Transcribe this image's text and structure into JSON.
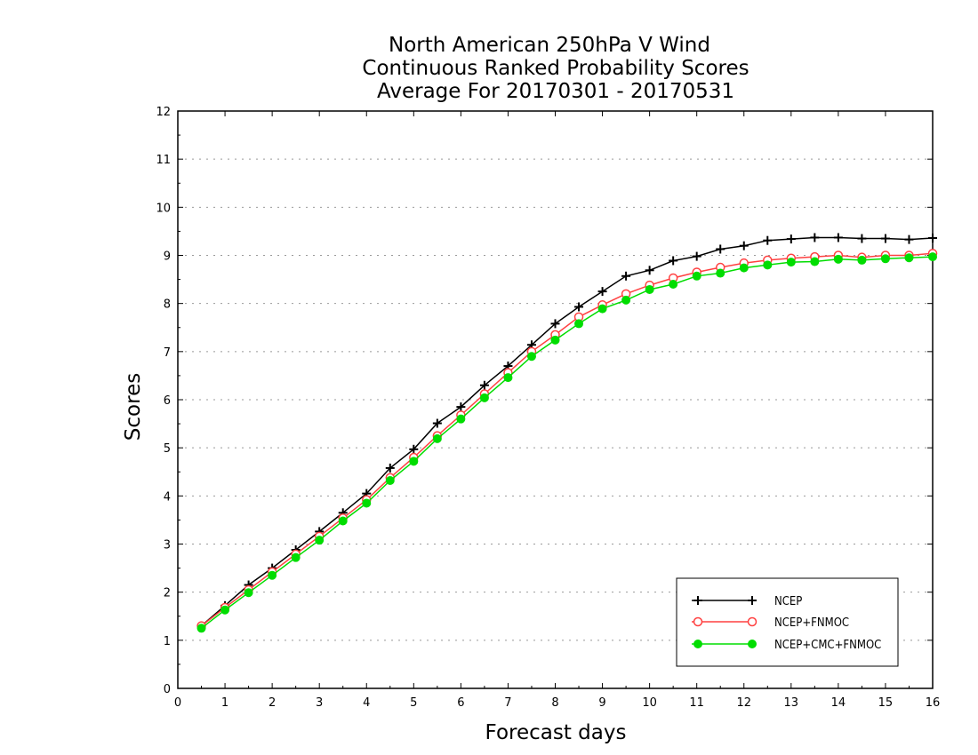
{
  "chart_data": {
    "type": "line",
    "title": [
      "North American 250hPa V Wind",
      "Continuous Ranked Probability Scores",
      "Average For 20170301 - 20170531"
    ],
    "xlabel": "Forecast days",
    "ylabel": "Scores",
    "xlim": [
      0,
      16
    ],
    "ylim": [
      0,
      12
    ],
    "xticks": [
      0,
      1,
      2,
      3,
      4,
      5,
      6,
      7,
      8,
      9,
      10,
      11,
      12,
      13,
      14,
      15,
      16
    ],
    "yticks": [
      0,
      1,
      2,
      3,
      4,
      5,
      6,
      7,
      8,
      9,
      10,
      11,
      12
    ],
    "grid": true,
    "legend_position": "bottom-right",
    "x": [
      0.5,
      1,
      1.5,
      2,
      2.5,
      3,
      3.5,
      4,
      4.5,
      5,
      5.5,
      6,
      6.5,
      7,
      7.5,
      8,
      8.5,
      9,
      9.5,
      10,
      10.5,
      11,
      11.5,
      12,
      12.5,
      13,
      13.5,
      14,
      14.5,
      15,
      15.5,
      16
    ],
    "series": [
      {
        "name": "NCEP",
        "color": "#000000",
        "marker": "plus",
        "values": [
          1.3,
          1.72,
          2.15,
          2.5,
          2.88,
          3.26,
          3.65,
          4.05,
          4.58,
          4.97,
          5.51,
          5.85,
          6.3,
          6.7,
          7.14,
          7.58,
          7.93,
          8.25,
          8.57,
          8.69,
          8.89,
          8.98,
          9.13,
          9.2,
          9.31,
          9.34,
          9.37,
          9.37,
          9.35,
          9.35,
          9.33,
          9.36
        ]
      },
      {
        "name": "NCEP+FNMOC",
        "color": "#ff4040",
        "marker": "open-circle",
        "values": [
          1.3,
          1.68,
          2.05,
          2.42,
          2.79,
          3.16,
          3.54,
          3.92,
          4.38,
          4.8,
          5.25,
          5.68,
          6.12,
          6.56,
          7.0,
          7.35,
          7.72,
          7.97,
          8.2,
          8.38,
          8.53,
          8.65,
          8.75,
          8.84,
          8.9,
          8.94,
          8.97,
          9.0,
          8.96,
          9.0,
          9.0,
          9.04
        ]
      },
      {
        "name": "NCEP+CMC+FNMOC",
        "color": "#00dd00",
        "marker": "filled-circle",
        "values": [
          1.25,
          1.63,
          1.99,
          2.35,
          2.72,
          3.08,
          3.48,
          3.85,
          4.32,
          4.72,
          5.19,
          5.6,
          6.04,
          6.46,
          6.9,
          7.24,
          7.58,
          7.89,
          8.07,
          8.29,
          8.4,
          8.57,
          8.63,
          8.74,
          8.8,
          8.86,
          8.87,
          8.92,
          8.9,
          8.93,
          8.95,
          8.97
        ]
      }
    ]
  }
}
